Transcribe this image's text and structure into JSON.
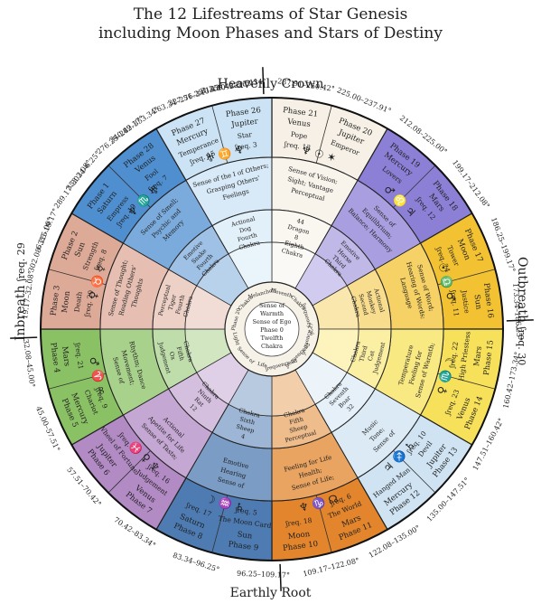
{
  "title": {
    "line1": "The 12 Lifestreams of Star Genesis",
    "line2": "including Moon Phases and Stars of Destiny"
  },
  "sides": {
    "top": "Heavenly Crown",
    "bottom": "Earthly Root",
    "left": "Inbreath",
    "left_freq": "ʃreq. 29",
    "right": "Outbreath",
    "right_freq": "ʃreq. 30"
  },
  "center": {
    "lines": [
      "Sense of",
      "Warmth",
      "Sense of Ego",
      "Phase 0",
      "Twelfth",
      "Chakra"
    ],
    "labels": [
      "Eleventh",
      "Chakra",
      "ʃrequency 26",
      "ʃrequency 27",
      "ʃrequency 25",
      "ʃrequency 28",
      "Life",
      "Sense of",
      "Light",
      "Phase 20",
      "Chakra",
      "Melancholy"
    ]
  },
  "sectors": [
    {
      "start": 0,
      "end": 30,
      "color": "#f6f0e6",
      "name": "north-east-cream",
      "outer": [
        "Phase 21",
        "Venus",
        "Phase 20",
        "Jupiter"
      ],
      "mid": [
        "Pope",
        "Emperor",
        "ʃreq. 13"
      ],
      "glyphs": "♆ ☉ ✶",
      "inner": [
        "Sense of Vision;",
        "Sight; Vantage",
        "Perceptual"
      ],
      "ring": [
        "44",
        "Dragon",
        "8",
        "Eighth",
        "Chakra"
      ]
    },
    {
      "start": 30,
      "end": 60,
      "color": "#8c7fd6",
      "name": "north-east-purple",
      "outer": [
        "Phase 19",
        "Mercury",
        "Phase 18",
        "Mars"
      ],
      "mid": [
        "Lovers",
        "ʃreq. 12"
      ],
      "glyphs": "♂ ♌ ♃",
      "inner": [
        "Sense of",
        "Equilibrium;",
        "Balance; Harmony"
      ],
      "ring": [
        "Emotive",
        "Horse",
        "Third",
        "Chakra"
      ]
    },
    {
      "start": 60,
      "end": 90,
      "color": "#f2c233",
      "name": "east-yellow",
      "outer": [
        "Phase 17",
        "Moon",
        "Phase 16",
        "Sun"
      ],
      "mid": [
        "Tower",
        "Justice",
        "ʃreq. 24",
        "ʃreq. 11"
      ],
      "glyphs": "☉ ♎ ♂",
      "inner": [
        "Sense of Word;",
        "Hearing of Words;",
        "Language"
      ],
      "ring": [
        "Actional",
        "Monkey",
        "Second",
        "Chakra"
      ]
    },
    {
      "start": 90,
      "end": 120,
      "color": "#f7e15a",
      "name": "east-light-yellow",
      "outer": [
        "Phase 15",
        "Mars",
        "Phase 14",
        "Venus"
      ],
      "mid": [
        "High Priestess",
        "ʃreq. 23",
        "ʃreq. 22"
      ],
      "glyphs": "♀ ♏ ☽",
      "inner": [
        "Sense of Warmth;",
        "Feeling for",
        "Temperature"
      ],
      "ring": [
        "Judgement",
        "Cat",
        "Third",
        "Chakra"
      ]
    },
    {
      "start": 120,
      "end": 150,
      "color": "#cfe3f2",
      "name": "south-east-light-blue",
      "outer": [
        "Phase 13",
        "Jupiter",
        "Phase 12",
        "Mercury"
      ],
      "mid": [
        "Devil",
        "Hanged Man",
        "ʃreq. 10"
      ],
      "glyphs": "♃ ♐ ♄",
      "inner": [
        "Sense of",
        "Tone;",
        "Music"
      ],
      "ring": [
        "32",
        "Boar",
        "Seventh",
        "Chakra"
      ]
    },
    {
      "start": 150,
      "end": 180,
      "color": "#e2852c",
      "name": "south-east-orange",
      "outer": [
        "Phase 11",
        "Mars",
        "Phase 10",
        "Moon"
      ],
      "mid": [
        "The World",
        "ʃreq. 18",
        "ʃreq. 6"
      ],
      "glyphs": "♆ ♑ ☊",
      "inner": [
        "Sense of Life;",
        "Health;",
        "Feeling for Life"
      ],
      "ring": [
        "Perceptual",
        "Sheep",
        "Fifth",
        "Chakra"
      ]
    },
    {
      "start": 180,
      "end": 210,
      "color": "#4d7bb2",
      "name": "south-blue",
      "outer": [
        "Phase 9",
        "Sun",
        "Phase 8",
        "Saturn"
      ],
      "mid": [
        "The Moon Card",
        "ʃreq. 17",
        "ʃreq. 5"
      ],
      "glyphs": "☽ ♒ ♄",
      "inner": [
        "Sense of",
        "Hearing",
        "Emotive"
      ],
      "ring": [
        "4",
        "Sheep",
        "Sixth",
        "Chakra"
      ]
    },
    {
      "start": 210,
      "end": 240,
      "color": "#b28ac4",
      "name": "south-purple",
      "outer": [
        "Phase 7",
        "Venus",
        "Phase 6",
        "Jupiter"
      ],
      "mid": [
        "Judgement",
        "Wheel of Fortune",
        "ʃreq. 16",
        "ʃreq. 4"
      ],
      "glyphs": "♓ ♀ ♆",
      "inner": [
        "Sense of Taste;",
        "Apetite for Life",
        "Actional"
      ],
      "ring": [
        "12",
        "Rat",
        "Ninth",
        "Chakra"
      ]
    },
    {
      "start": 240,
      "end": 270,
      "color": "#8bc165",
      "name": "south-west-green",
      "outer": [
        "Phase 5",
        "Mercury",
        "Phase 4",
        "Mars"
      ],
      "mid": [
        "Chariot",
        "ʃreq. 21",
        "ʃreq. 9"
      ],
      "glyphs": "♂ ♈ ∞",
      "inner": [
        "Sense of",
        "Movement;",
        "Rhythm; Dance"
      ],
      "ring": [
        "Judgement",
        "Ox",
        "Fifth",
        "Chakra"
      ]
    },
    {
      "start": 270,
      "end": 300,
      "color": "#deaa98",
      "name": "west-rose",
      "outer": [
        "Phase 3",
        "Moon",
        "Phase 2",
        "Sun"
      ],
      "mid": [
        "Death",
        "Strength",
        "ʃreq. 20",
        "ʃreq. 8"
      ],
      "glyphs": "♀ ♉ ☿",
      "inner": [
        "Sense of Thought;",
        "Reading Others'",
        "Thoughts"
      ],
      "ring": [
        "Perceptual",
        "Tiger",
        "Fourth",
        "Chakra"
      ]
    },
    {
      "start": 300,
      "end": 330,
      "color": "#4f8fd0",
      "name": "west-blue",
      "outer": [
        "Phase 1",
        "Saturn",
        "Phase 28",
        "Venus"
      ],
      "mid": [
        "Empress",
        "Fool",
        "ʃreq. 19",
        "ʃreq. 7"
      ],
      "glyphs": "♆ ♏ ♅",
      "inner": [
        "Sense of Smell;",
        "Psychic and",
        "Memory"
      ],
      "ring": [
        "Emotive",
        "Snake",
        "Fourth",
        "Chakra"
      ]
    },
    {
      "start": 330,
      "end": 360,
      "color": "#cbe3f4",
      "name": "north-west-pale-blue",
      "outer": [
        "Phase 27",
        "Mercury",
        "Phase 26",
        "Jupiter"
      ],
      "mid": [
        "Temperance",
        "Star",
        "ʃreq. 15",
        "ʃreq. 3"
      ],
      "glyphs": "♅ ♊ ♆",
      "inner": [
        "Sense of the I of Others;",
        "Grasping Others'",
        "Feelings"
      ],
      "ring": [
        "Actional",
        "Dog",
        "Fourth",
        "Chakra"
      ]
    }
  ],
  "top_left_sectors": [
    {
      "outer": [
        "Phase 23",
        "Sun",
        "Phase 22",
        "Saturn"
      ],
      "mid": [
        "Magician",
        "Hermit",
        "ʃreq. 2",
        "ʃreq. 14"
      ],
      "inner": [
        "Sense of Touch;",
        "Feeling through",
        "the Skin",
        "Judgement"
      ],
      "ring": [
        "20",
        "Rooster",
        "Fourth",
        "Chakra"
      ]
    }
  ],
  "degrees": [
    {
      "angle": -8,
      "text": "250.42–263.34°"
    },
    {
      "angle": 8,
      "text": "237.91–250.42°"
    },
    {
      "angle": 22,
      "text": "225.00–237.91°"
    },
    {
      "angle": 38,
      "text": "212.08–225.00°"
    },
    {
      "angle": 54,
      "text": "199.17–212.08°"
    },
    {
      "angle": 70,
      "text": "186.25–199.17°"
    },
    {
      "angle": 86,
      "text": "173.34–186.25°"
    },
    {
      "angle": 102,
      "text": "160.42–173.34°"
    },
    {
      "angle": 118,
      "text": "147.51–160.42°"
    },
    {
      "angle": 134,
      "text": "135.00–147.51°"
    },
    {
      "angle": 150,
      "text": "122.08–135.00°"
    },
    {
      "angle": 166,
      "text": "109.17–122.08°"
    },
    {
      "angle": 182,
      "text": "96.25–109.17°"
    },
    {
      "angle": 198,
      "text": "83.34–96.25°"
    },
    {
      "angle": 214,
      "text": "70.42–83.34°"
    },
    {
      "angle": 230,
      "text": "57.51–70.42°"
    },
    {
      "angle": 246,
      "text": "45.00–57.51°"
    },
    {
      "angle": 262,
      "text": "32.08–45.00°"
    },
    {
      "angle": 278,
      "text": "19.17–32.08°"
    },
    {
      "angle": 294,
      "text": "6.25–19.17°"
    },
    {
      "angle": 310,
      "text": "353.34–6.25°"
    },
    {
      "angle": 326,
      "text": "340.42–353.34°"
    },
    {
      "angle": 342,
      "text": "327.51–340.42°"
    },
    {
      "angle": 350,
      "text": "315.00–327.51°"
    }
  ],
  "outer_degrees_top": [
    {
      "angle": -22,
      "text": "263.34–276.25°"
    },
    {
      "angle": -38,
      "text": "276.25–289.17°"
    },
    {
      "angle": -54,
      "text": "289.17–302.08°"
    },
    {
      "angle": -70,
      "text": "302.08–315.00°"
    }
  ]
}
